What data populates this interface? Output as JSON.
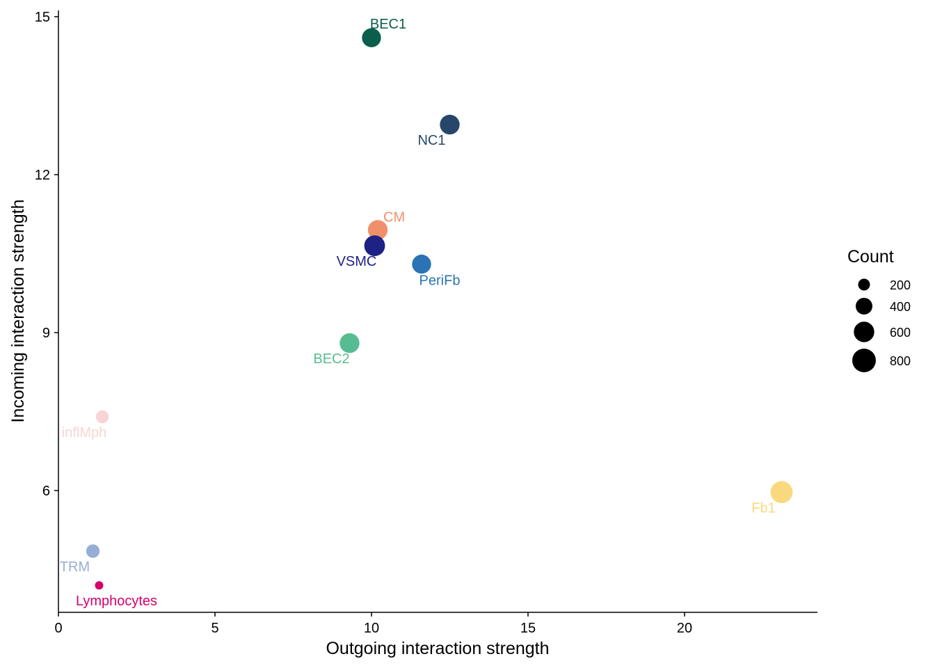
{
  "chart_data": {
    "type": "scatter",
    "xlabel": "Outgoing interaction strength",
    "ylabel": "Incoming interaction strength",
    "xlim": [
      0,
      24.2
    ],
    "ylim": [
      3.9,
      15.1
    ],
    "xticks": [
      0,
      5,
      10,
      15,
      20
    ],
    "yticks": [
      6,
      9,
      12,
      15
    ],
    "grid": false,
    "legend_position": "right",
    "legend": {
      "title": "Count",
      "entries": [
        {
          "label": "200",
          "count": 200
        },
        {
          "label": "400",
          "count": 400
        },
        {
          "label": "600",
          "count": 600
        },
        {
          "label": "800",
          "count": 800
        }
      ]
    },
    "points": [
      {
        "label": "BEC1",
        "x": 10.0,
        "y": 14.6,
        "count": 520,
        "color": "#0B5E4B",
        "label_pos": "above"
      },
      {
        "label": "NC1",
        "x": 12.5,
        "y": 12.95,
        "count": 560,
        "color": "#27476A",
        "label_pos": "below-left"
      },
      {
        "label": "CM",
        "x": 10.2,
        "y": 10.95,
        "count": 560,
        "color": "#F0906B",
        "label_pos": "above-right"
      },
      {
        "label": "VSMC",
        "x": 10.1,
        "y": 10.65,
        "count": 620,
        "color": "#1E2284",
        "label_pos": "below-left"
      },
      {
        "label": "PeriFb",
        "x": 11.6,
        "y": 10.3,
        "count": 520,
        "color": "#2B73B4",
        "label_pos": "below-right"
      },
      {
        "label": "BEC2",
        "x": 9.3,
        "y": 8.8,
        "count": 560,
        "color": "#57BC91",
        "label_pos": "below-left"
      },
      {
        "label": "inflMph",
        "x": 1.4,
        "y": 7.4,
        "count": 240,
        "color": "#F8D5D4",
        "label_pos": "below-left"
      },
      {
        "label": "Fb1",
        "x": 23.1,
        "y": 5.97,
        "count": 700,
        "color": "#F9D97E",
        "label_pos": "below-left"
      },
      {
        "label": "TRM",
        "x": 1.1,
        "y": 4.85,
        "count": 260,
        "color": "#97AED4",
        "label_pos": "below-left"
      },
      {
        "label": "Lymphocytes",
        "x": 1.3,
        "y": 4.2,
        "count": 100,
        "color": "#D4006B",
        "label_pos": "below-right"
      }
    ]
  }
}
